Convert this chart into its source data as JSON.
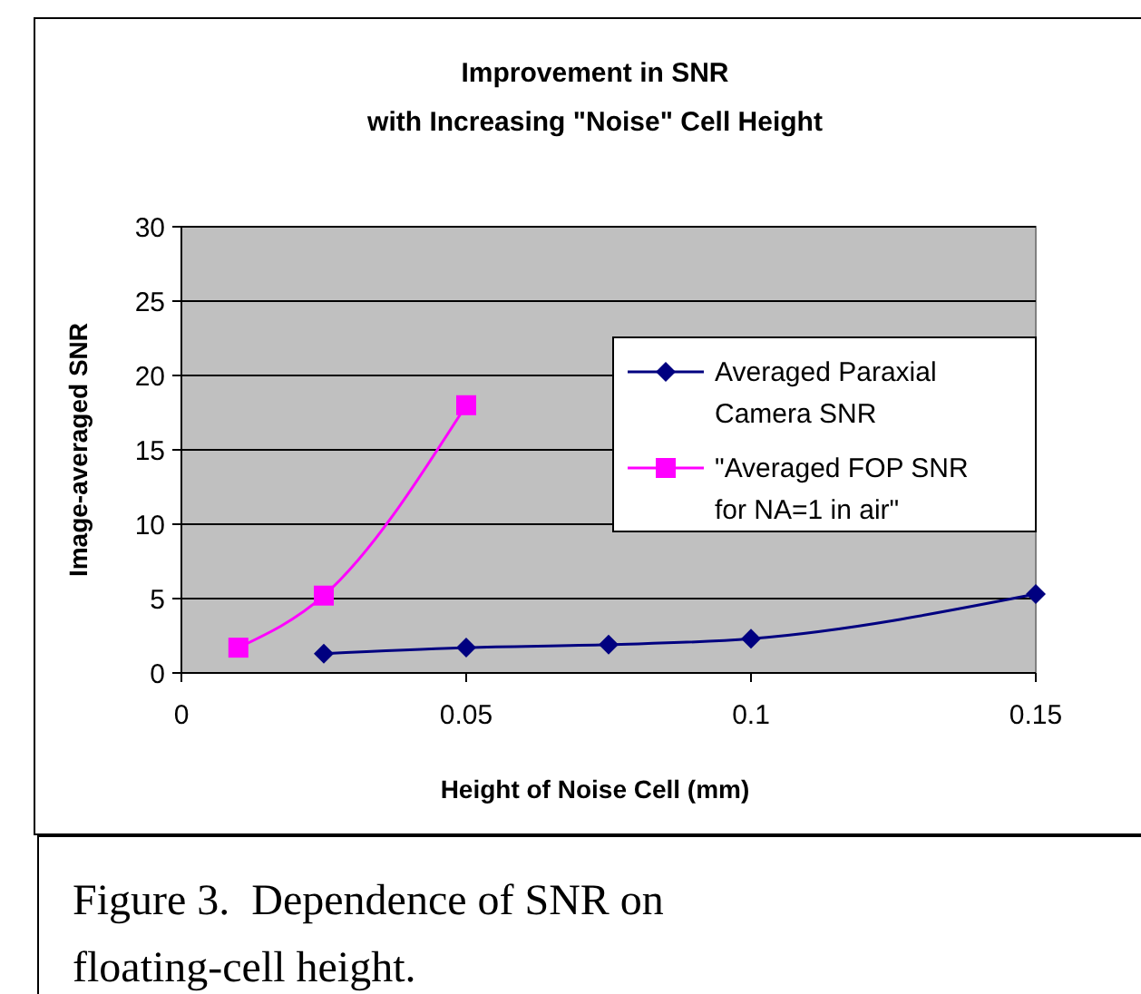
{
  "chart_data": {
    "type": "line",
    "title": "Improvement in SNR\nwith Increasing \"Noise\" Cell Height",
    "xlabel": "Height of Noise Cell (mm)",
    "ylabel": "Image-averaged SNR",
    "annotations": [
      "Figure 3.  Dependence of SNR on floating-cell height."
    ],
    "series": [
      {
        "name": "Averaged Paraxial\nCamera SNR",
        "color": "#000080",
        "marker": "diamond",
        "x": [
          0.025,
          0.05,
          0.075,
          0.1,
          0.15
        ],
        "values": [
          1.3,
          1.7,
          1.9,
          2.3,
          5.3
        ]
      },
      {
        "name": "\"Averaged FOP SNR\nfor NA=1 in air\"",
        "color": "#ff00ff",
        "marker": "square",
        "x": [
          0.01,
          0.025,
          0.05
        ],
        "values": [
          1.7,
          5.2,
          18
        ]
      }
    ],
    "xlim": [
      0,
      0.15
    ],
    "xticks": [
      0,
      0.05,
      0.1,
      0.15
    ],
    "ylim": [
      0,
      30
    ],
    "yticks": [
      0,
      5,
      10,
      15,
      20,
      25,
      30
    ],
    "grid": "y",
    "legend": "right",
    "line_style": "solid"
  }
}
